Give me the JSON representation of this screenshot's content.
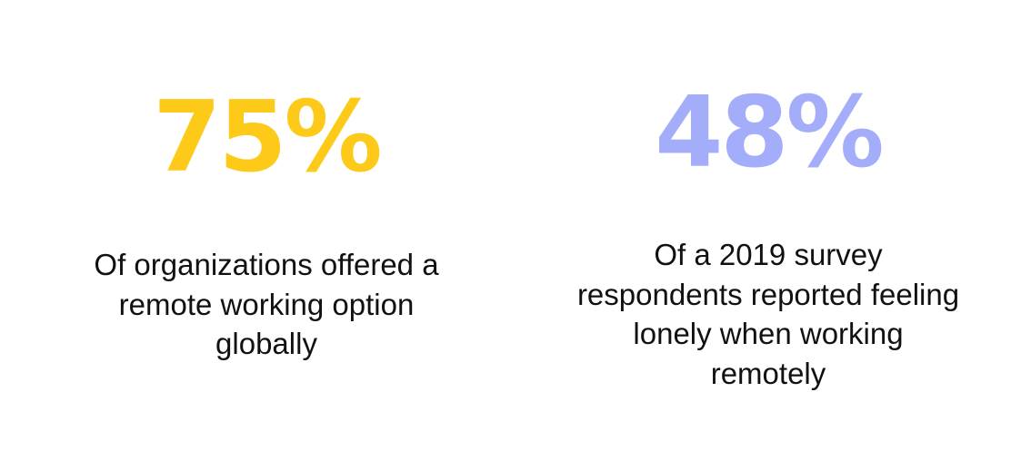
{
  "stats": [
    {
      "value": "75%",
      "caption": "Of organizations offered a\nremote working option\nglobally",
      "color": "#FDCA1A"
    },
    {
      "value": "48%",
      "caption": "Of a 2019 survey\nrespondents reported feeling\nlonely when working\nremotely",
      "color": "#A3ADFA"
    }
  ]
}
